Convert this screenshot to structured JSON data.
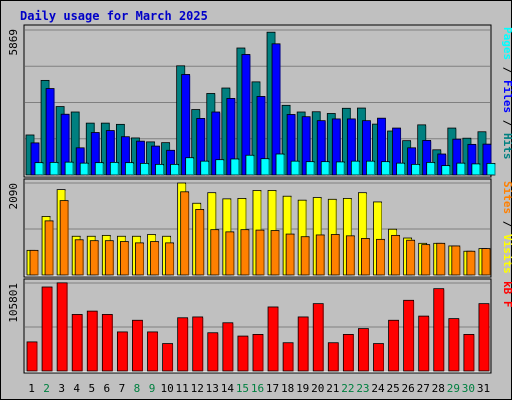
{
  "title": "Daily usage for March 2025",
  "colors": {
    "pages": "#00ffff",
    "files": "#0000ff",
    "hits": "#008080",
    "visits": "#ffff00",
    "sites": "#ff8000",
    "kbytes": "#ff0000",
    "weekend_label": "#008040",
    "weekday_label": "#000000",
    "panel_bg": "#c0c0c0"
  },
  "chart_data": [
    {
      "type": "bar",
      "panel": "top",
      "ytick_label": "5869",
      "ylim": [
        0,
        5869
      ],
      "grid": true,
      "legend_placement": "right",
      "legend": [
        {
          "label": "Pages",
          "color_key": "pages"
        },
        {
          "label": "Files",
          "color_key": "files"
        },
        {
          "label": "Hits",
          "color_key": "hits"
        }
      ],
      "categories": [
        "1",
        "2",
        "3",
        "4",
        "5",
        "6",
        "7",
        "8",
        "9",
        "10",
        "11",
        "12",
        "13",
        "14",
        "15",
        "16",
        "17",
        "18",
        "19",
        "20",
        "21",
        "22",
        "23",
        "24",
        "25",
        "26",
        "27",
        "28",
        "29",
        "30",
        "31"
      ],
      "weekend_days": [
        "2",
        "8",
        "9",
        "15",
        "16",
        "22",
        "23",
        "29",
        "30"
      ],
      "series": [
        {
          "name": "Hits",
          "color_key": "hits",
          "values": [
            1620,
            3830,
            2770,
            2550,
            2100,
            2100,
            2050,
            1500,
            1340,
            1310,
            4420,
            2650,
            3300,
            3520,
            5140,
            3770,
            5780,
            2820,
            2550,
            2560,
            2490,
            2700,
            2710,
            2060,
            1780,
            1390,
            2030,
            1020,
            1900,
            1490,
            1750
          ]
        },
        {
          "name": "Files",
          "color_key": "files",
          "values": [
            1300,
            3500,
            2460,
            1100,
            1720,
            1800,
            1550,
            1370,
            1170,
            1000,
            4070,
            2290,
            2550,
            3100,
            4880,
            3180,
            5310,
            2450,
            2360,
            2200,
            2270,
            2270,
            2200,
            2300,
            1900,
            1100,
            1400,
            850,
            1450,
            1240,
            1250
          ]
        },
        {
          "name": "Pages",
          "color_key": "pages",
          "values": [
            500,
            510,
            520,
            480,
            500,
            510,
            500,
            470,
            430,
            430,
            700,
            560,
            620,
            650,
            800,
            660,
            850,
            560,
            540,
            540,
            530,
            560,
            560,
            540,
            480,
            430,
            510,
            380,
            480,
            450,
            470
          ]
        }
      ]
    },
    {
      "type": "bar",
      "panel": "middle",
      "ytick_label": "2090",
      "ylim": [
        0,
        2090
      ],
      "grid": true,
      "legend_placement": "right",
      "legend": [
        {
          "label": "Sites",
          "color_key": "sites"
        },
        {
          "label": "Visits",
          "color_key": "visits"
        }
      ],
      "categories": [
        "1",
        "2",
        "3",
        "4",
        "5",
        "6",
        "7",
        "8",
        "9",
        "10",
        "11",
        "12",
        "13",
        "14",
        "15",
        "16",
        "17",
        "18",
        "19",
        "20",
        "21",
        "22",
        "23",
        "24",
        "25",
        "26",
        "27",
        "28",
        "29",
        "30",
        "31"
      ],
      "series": [
        {
          "name": "Visits",
          "color_key": "visits",
          "values": [
            560,
            1330,
            1940,
            880,
            880,
            900,
            880,
            880,
            920,
            880,
            2090,
            1630,
            1870,
            1730,
            1740,
            1920,
            1920,
            1790,
            1700,
            1760,
            1720,
            1740,
            1870,
            1660,
            1040,
            840,
            720,
            720,
            660,
            540,
            600
          ]
        },
        {
          "name": "Sites",
          "color_key": "sites",
          "values": [
            560,
            1230,
            1690,
            800,
            780,
            780,
            760,
            730,
            760,
            730,
            1890,
            1490,
            1030,
            980,
            1030,
            1020,
            1010,
            930,
            870,
            910,
            920,
            890,
            830,
            810,
            900,
            790,
            690,
            720,
            660,
            540,
            600
          ]
        }
      ]
    },
    {
      "type": "bar",
      "panel": "bottom",
      "ytick_label": "105801",
      "ylim": [
        0,
        105801
      ],
      "grid": true,
      "legend_placement": "right",
      "legend": [
        {
          "label": "KBytes",
          "color_key": "kbytes"
        }
      ],
      "categories": [
        "1",
        "2",
        "3",
        "4",
        "5",
        "6",
        "7",
        "8",
        "9",
        "10",
        "11",
        "12",
        "13",
        "14",
        "15",
        "16",
        "17",
        "18",
        "19",
        "20",
        "21",
        "22",
        "23",
        "24",
        "25",
        "26",
        "27",
        "28",
        "29",
        "30",
        "31"
      ],
      "series": [
        {
          "name": "KBytes",
          "color_key": "kbytes",
          "values": [
            35000,
            101000,
            106000,
            68000,
            72000,
            68000,
            47000,
            61000,
            47000,
            33000,
            64000,
            65000,
            46000,
            58000,
            42000,
            44000,
            77000,
            34000,
            65000,
            81000,
            34000,
            44000,
            51000,
            33000,
            61000,
            85000,
            66000,
            99000,
            63000,
            44000,
            81000
          ]
        }
      ]
    }
  ],
  "right_labels": {
    "top": [
      {
        "text": "Pages",
        "color_key": "pages"
      },
      {
        "text": " / ",
        "color_key": "weekday_label"
      },
      {
        "text": "Files",
        "color_key": "files"
      },
      {
        "text": " / ",
        "color_key": "weekday_label"
      },
      {
        "text": "Hits",
        "color_key": "hits"
      }
    ],
    "middle": [
      {
        "text": "Sites",
        "color_key": "sites"
      },
      {
        "text": " / ",
        "color_key": "weekday_label"
      },
      {
        "text": "Visits",
        "color_key": "visits"
      }
    ],
    "bottom": [
      {
        "text": "kB F",
        "color_key": "kbytes"
      }
    ]
  }
}
